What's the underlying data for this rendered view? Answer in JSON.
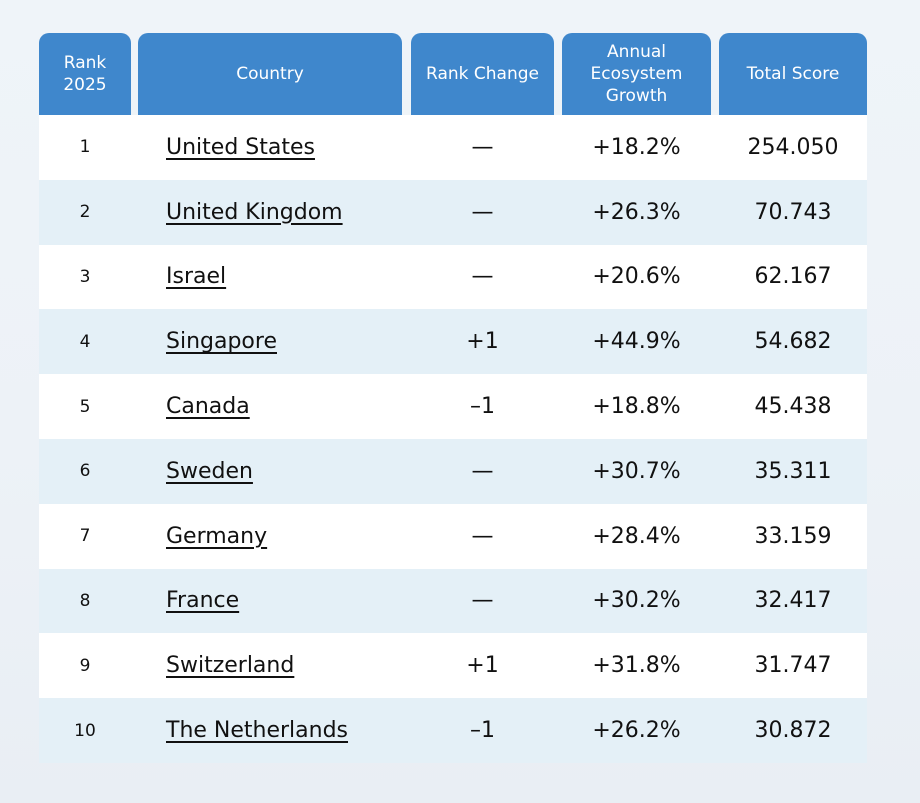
{
  "table": {
    "headers": {
      "rank": "Rank\n2025",
      "country": "Country",
      "rank_change": "Rank Change",
      "growth": "Annual\nEcosystem\nGrowth",
      "score": "Total Score"
    },
    "rows": [
      {
        "rank": "1",
        "country": "United States",
        "rank_change": "—",
        "growth": "+18.2%",
        "score": "254.050"
      },
      {
        "rank": "2",
        "country": "United Kingdom",
        "rank_change": "—",
        "growth": "+26.3%",
        "score": "70.743"
      },
      {
        "rank": "3",
        "country": "Israel",
        "rank_change": "—",
        "growth": "+20.6%",
        "score": "62.167"
      },
      {
        "rank": "4",
        "country": "Singapore",
        "rank_change": "+1",
        "growth": "+44.9%",
        "score": "54.682"
      },
      {
        "rank": "5",
        "country": "Canada",
        "rank_change": "–1",
        "growth": "+18.8%",
        "score": "45.438"
      },
      {
        "rank": "6",
        "country": "Sweden",
        "rank_change": "—",
        "growth": "+30.7%",
        "score": "35.311"
      },
      {
        "rank": "7",
        "country": "Germany",
        "rank_change": "—",
        "growth": "+28.4%",
        "score": "33.159"
      },
      {
        "rank": "8",
        "country": "France",
        "rank_change": "—",
        "growth": "+30.2%",
        "score": "32.417"
      },
      {
        "rank": "9",
        "country": "Switzerland",
        "rank_change": "+1",
        "growth": "+31.8%",
        "score": "31.747"
      },
      {
        "rank": "10",
        "country": "The Netherlands",
        "rank_change": "–1",
        "growth": "+26.2%",
        "score": "30.872"
      }
    ]
  },
  "colors": {
    "header_bg": "#3f87cc",
    "row_alt_bg": "#e4f0f7",
    "row_bg": "#ffffff"
  }
}
